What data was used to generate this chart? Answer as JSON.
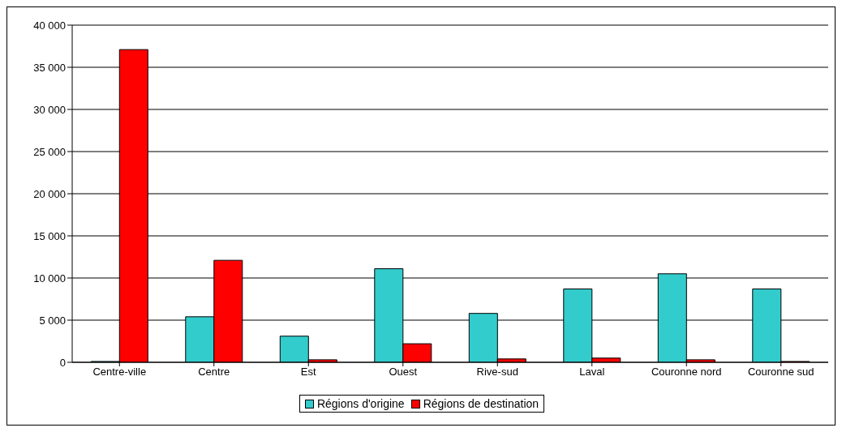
{
  "chart_data": {
    "type": "bar",
    "categories": [
      "Centre-ville",
      "Centre",
      "Est",
      "Ouest",
      "Rive-sud",
      "Laval",
      "Couronne nord",
      "Couronne sud"
    ],
    "series": [
      {
        "name": "Régions d'origine",
        "color": "#33cccc",
        "values": [
          100,
          5400,
          3100,
          11100,
          5800,
          8700,
          10500,
          8700
        ]
      },
      {
        "name": "Régions de destination",
        "color": "#ff0000",
        "values": [
          37100,
          12100,
          300,
          2200,
          400,
          500,
          300,
          100
        ]
      }
    ],
    "ylim": [
      0,
      40000
    ],
    "yticks": [
      0,
      {
        "value": 5000,
        "label": "5 000"
      },
      {
        "value": 10000,
        "label": "10 000"
      },
      {
        "value": 15000,
        "label": "15 000"
      },
      {
        "value": 20000,
        "label": "20 000"
      },
      {
        "value": 25000,
        "label": "25 000"
      },
      {
        "value": 30000,
        "label": "30 000"
      },
      {
        "value": 35000,
        "label": "35 000"
      },
      {
        "value": 40000,
        "label": "40 000"
      }
    ],
    "grid": "y",
    "legend": "bottom"
  }
}
